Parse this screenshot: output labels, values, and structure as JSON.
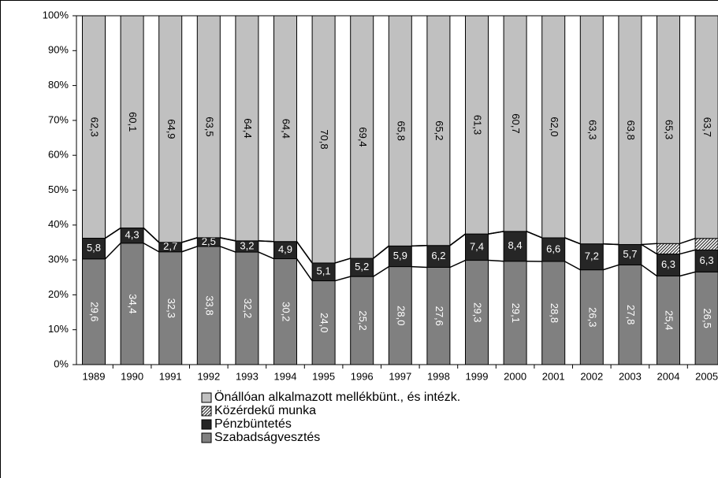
{
  "chart_data": {
    "type": "bar",
    "stacking": "percent",
    "categories": [
      "1989",
      "1990",
      "1991",
      "1992",
      "1993",
      "1994",
      "1995",
      "1996",
      "1997",
      "1998",
      "1999",
      "2000",
      "2001",
      "2002",
      "2003",
      "2004",
      "2005"
    ],
    "series": [
      {
        "name": "Szabadságvesztés",
        "color": "#808080",
        "values": [
          29.6,
          34.4,
          32.3,
          33.8,
          32.2,
          30.2,
          24.0,
          25.2,
          28.0,
          27.6,
          29.3,
          29.1,
          28.8,
          26.3,
          27.8,
          25.4,
          26.5
        ],
        "value_labels": [
          "29,6",
          "34,4",
          "32,3",
          "33,8",
          "32,2",
          "30,2",
          "24,0",
          "25,2",
          "28,0",
          "27,6",
          "29,3",
          "29,1",
          "28,8",
          "26,3",
          "27,8",
          "25,4",
          "26,5"
        ]
      },
      {
        "name": "Pénzbüntetés",
        "color": "#262626",
        "values": [
          5.8,
          4.3,
          2.7,
          2.5,
          3.2,
          4.9,
          5.1,
          5.2,
          5.9,
          6.2,
          7.4,
          8.4,
          6.6,
          7.2,
          5.7,
          6.3,
          6.3
        ],
        "value_labels": [
          "5,8",
          "4,3",
          "2,7",
          "2,5",
          "3,2",
          "4,9",
          "5,1",
          "5,2",
          "5,9",
          "6,2",
          "7,4",
          "8,4",
          "6,6",
          "7,2",
          "5,7",
          "6,3",
          "6,3"
        ]
      },
      {
        "name": "Közérdekű munka",
        "color": "hatch",
        "values": [
          null,
          null,
          null,
          null,
          null,
          null,
          null,
          null,
          null,
          null,
          null,
          null,
          null,
          null,
          null,
          3.0,
          3.3
        ]
      },
      {
        "name": "Önállóan alkalmazott mellékbünt., és intézk.",
        "color": "#c0c0c0",
        "values": [
          62.3,
          60.1,
          64.9,
          63.5,
          64.4,
          64.4,
          70.8,
          69.4,
          65.8,
          65.2,
          61.3,
          60.7,
          62.0,
          63.3,
          63.8,
          65.3,
          63.7
        ],
        "value_labels": [
          "62,3",
          "60,1",
          "64,9",
          "63,5",
          "64,4",
          "64,4",
          "70,8",
          "69,4",
          "65,8",
          "65,2",
          "61,3",
          "60,7",
          "62,0",
          "63,3",
          "63,8",
          "65,3",
          "63,7"
        ]
      }
    ],
    "ylim": [
      0,
      100
    ],
    "yticks": [
      {
        "value": 0,
        "label": "0%"
      },
      {
        "value": 10,
        "label": "10%"
      },
      {
        "value": 20,
        "label": "20%"
      },
      {
        "value": 30,
        "label": "30%"
      },
      {
        "value": 40,
        "label": "40%"
      },
      {
        "value": 50,
        "label": "50%"
      },
      {
        "value": 60,
        "label": "60%"
      },
      {
        "value": 70,
        "label": "70%"
      },
      {
        "value": 80,
        "label": "80%"
      },
      {
        "value": 90,
        "label": "90%"
      },
      {
        "value": 100,
        "label": "100%"
      }
    ]
  }
}
